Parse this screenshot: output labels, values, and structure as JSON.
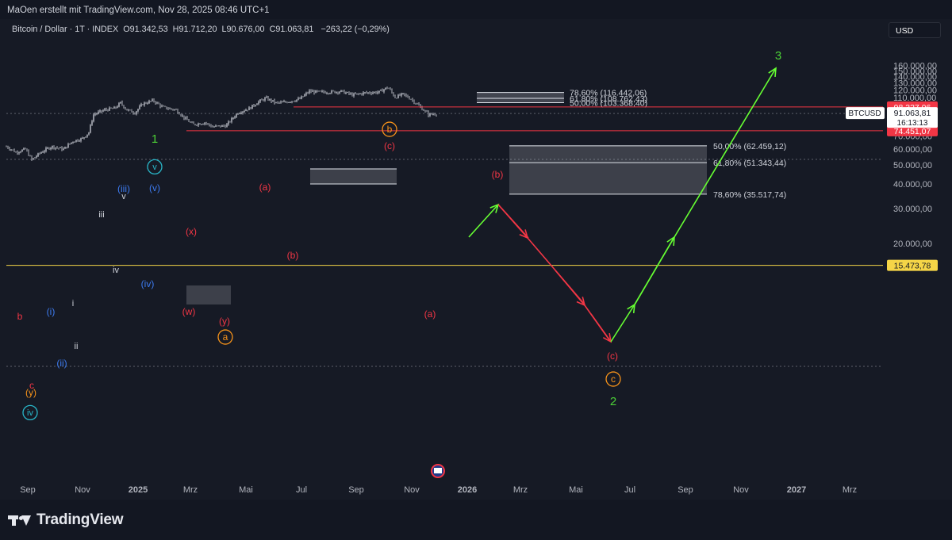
{
  "header": {
    "attribution": "MaOen erstellt mit TradingView.com, Nov 28, 2025 08:46 UTC+1"
  },
  "ticker": {
    "symbol": "Bitcoin / Dollar · 1T · INDEX",
    "open_label": "O",
    "open": "91.342,53",
    "high_label": "H",
    "high": "91.712,20",
    "low_label": "L",
    "low": "90.676,00",
    "close_label": "C",
    "close": "91.063,81",
    "change": "−263,22 (−0,29%)"
  },
  "currency_button": "USD",
  "logo_text": "TradingView",
  "colors": {
    "background": "#161a25",
    "text": "#d1d4dc",
    "red": "#f23645",
    "green": "#4cd137",
    "bright_green": "#66ff33",
    "blue": "#3d7bf0",
    "cyan": "#29b6c8",
    "orange": "#f7931a",
    "yellow": "#f5d547"
  },
  "chart_data": {
    "type": "candlestick",
    "x_axis": {
      "labels": [
        "Sep",
        "Nov",
        "2025",
        "Mrz",
        "Mai",
        "Jul",
        "Sep",
        "Nov",
        "2026",
        "Mrz",
        "Mai",
        "Jul",
        "Sep",
        "Nov",
        "2027",
        "Mrz"
      ]
    },
    "y_axis": {
      "scale": "log",
      "ylim": [
        14500,
        172000
      ],
      "tick_labels": [
        "160.000,00",
        "150.000,00",
        "140.000,00",
        "130.000,00",
        "120.000,00",
        "110.000,00",
        "100.000,00",
        "90.000,00",
        "80.000,00",
        "70.000,00",
        "60.000,00",
        "50.000,00",
        "40.000,00",
        "30.000,00",
        "20.000,00"
      ]
    },
    "last_price": {
      "symbol": "BTCUSD",
      "value": "91.063,81",
      "countdown": "16:13:13"
    },
    "price_labels": [
      {
        "value": "98.327,06",
        "color": "#f23645"
      },
      {
        "value": "74.451,07",
        "color": "#f23645"
      },
      {
        "value": "15.473,78",
        "color": "#f5d547"
      }
    ],
    "fib_upper": [
      {
        "label": "78,60% (116.442,06)"
      },
      {
        "label": "61,80% (108.762,43)"
      },
      {
        "label": "50,00% (103.368,40)"
      }
    ],
    "fib_lower": [
      {
        "label": "50,00% (62.459,12)"
      },
      {
        "label": "61,80% (51.343,44)"
      },
      {
        "label": "78,60% (35.517,74)"
      }
    ],
    "wave_labels": [
      {
        "text": "1",
        "color": "#4cd137"
      },
      {
        "text": "v",
        "color": "#29b6c8",
        "circled": true
      },
      {
        "text": "(v)",
        "color": "#3d7bf0"
      },
      {
        "text": "(iii)",
        "color": "#3d7bf0"
      },
      {
        "text": "v",
        "color": "#d1d4dc"
      },
      {
        "text": "iii",
        "color": "#d1d4dc"
      },
      {
        "text": "iv",
        "color": "#d1d4dc"
      },
      {
        "text": "(iv)",
        "color": "#3d7bf0"
      },
      {
        "text": "i",
        "color": "#d1d4dc"
      },
      {
        "text": "ii",
        "color": "#d1d4dc"
      },
      {
        "text": "(i)",
        "color": "#3d7bf0"
      },
      {
        "text": "(ii)",
        "color": "#3d7bf0"
      },
      {
        "text": "b",
        "color": "#f23645"
      },
      {
        "text": "c",
        "color": "#f23645"
      },
      {
        "text": "(y)",
        "color": "#f7931a"
      },
      {
        "text": "iv",
        "color": "#29b6c8",
        "circled": true
      },
      {
        "text": "(x)",
        "color": "#f23645"
      },
      {
        "text": "(w)",
        "color": "#f23645"
      },
      {
        "text": "(y)",
        "color": "#f23645"
      },
      {
        "text": "a",
        "color": "#f7931a",
        "circled": true
      },
      {
        "text": "(a)",
        "color": "#f23645"
      },
      {
        "text": "(b)",
        "color": "#f23645"
      },
      {
        "text": "b",
        "color": "#f7931a",
        "circled": true
      },
      {
        "text": "(c)",
        "color": "#f23645"
      },
      {
        "text": "(a)",
        "color": "#f23645"
      },
      {
        "text": "(b)",
        "color": "#f23645"
      },
      {
        "text": "(c)",
        "color": "#f23645"
      },
      {
        "text": "c",
        "color": "#f7931a",
        "circled": true
      },
      {
        "text": "2",
        "color": "#4cd137"
      },
      {
        "text": "3",
        "color": "#4cd137"
      }
    ]
  }
}
